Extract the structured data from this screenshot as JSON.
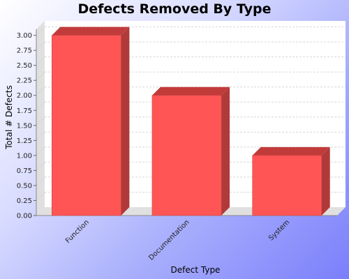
{
  "colors": {
    "bar_front": "#ff5555",
    "bar_top": "#c23b3b",
    "bar_side": "#b03a3a",
    "bar_edge": "#cc4444",
    "plot_bg": "#ffffff",
    "wall": "#e0e0e0",
    "grid": "#d8d8d8"
  },
  "chart_data": {
    "type": "bar",
    "title": "Defects Removed By Type",
    "xlabel": "Defect Type",
    "ylabel": "Total # Defects",
    "categories": [
      "Function",
      "Documentation",
      "System"
    ],
    "values": [
      3,
      2,
      1
    ],
    "ylim": [
      0,
      3.1
    ],
    "yticks": [
      "0.00",
      "0.25",
      "0.50",
      "0.75",
      "1.00",
      "1.25",
      "1.50",
      "1.75",
      "2.00",
      "2.25",
      "2.50",
      "2.75",
      "3.00"
    ],
    "grid": true,
    "legend": "none",
    "style": "3d"
  }
}
